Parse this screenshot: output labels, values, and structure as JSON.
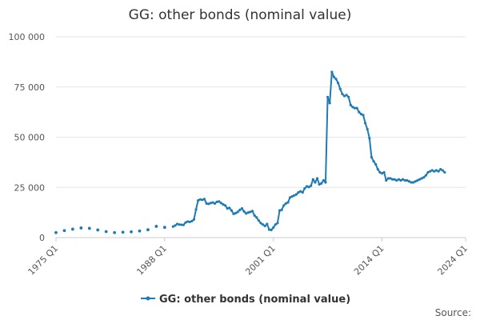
{
  "chart_data": {
    "type": "line",
    "title": "GG: other bonds (nominal value)",
    "xlabel": "",
    "ylabel": "",
    "x_tick_labels": [
      "1975 Q1",
      "1988 Q1",
      "2001 Q1",
      "2014 Q1",
      "2024 Q1"
    ],
    "x_tick_years": [
      1975.0,
      1988.0,
      2001.0,
      2014.0,
      2024.0
    ],
    "x_range": [
      1975.0,
      2024.0
    ],
    "ylim": [
      0,
      100000
    ],
    "y_ticks": [
      0,
      25000,
      50000,
      75000,
      100000
    ],
    "y_tick_labels": [
      "0",
      "25 000",
      "50 000",
      "75 000",
      "100 000"
    ],
    "grid": "horizontal",
    "legend_position": "bottom",
    "colors": {
      "series": "#1f7bb6",
      "grid": "#e6e6e6",
      "axis": "#cccccc"
    },
    "series": [
      {
        "name": "GG: other bonds (nominal value)",
        "annual_points": [
          [
            1975.0,
            2500
          ],
          [
            1976.0,
            3500
          ],
          [
            1977.0,
            4200
          ],
          [
            1978.0,
            4800
          ],
          [
            1979.0,
            4600
          ],
          [
            1980.0,
            3800
          ],
          [
            1981.0,
            3000
          ],
          [
            1982.0,
            2500
          ],
          [
            1983.0,
            2700
          ],
          [
            1984.0,
            2900
          ],
          [
            1985.0,
            3300
          ],
          [
            1986.0,
            3900
          ],
          [
            1987.0,
            5600
          ],
          [
            1988.0,
            5100
          ]
        ],
        "quarterly_points": [
          [
            1989.0,
            5500
          ],
          [
            1989.25,
            6000
          ],
          [
            1989.5,
            6800
          ],
          [
            1989.75,
            6500
          ],
          [
            1990.0,
            6400
          ],
          [
            1990.25,
            6300
          ],
          [
            1990.5,
            7500
          ],
          [
            1990.75,
            8000
          ],
          [
            1991.0,
            7800
          ],
          [
            1991.25,
            8200
          ],
          [
            1991.5,
            9000
          ],
          [
            1991.75,
            14000
          ],
          [
            1992.0,
            18500
          ],
          [
            1992.25,
            19000
          ],
          [
            1992.5,
            18800
          ],
          [
            1992.75,
            19200
          ],
          [
            1993.0,
            17000
          ],
          [
            1993.25,
            16800
          ],
          [
            1993.5,
            17200
          ],
          [
            1993.75,
            17500
          ],
          [
            1994.0,
            17000
          ],
          [
            1994.25,
            17800
          ],
          [
            1994.5,
            18000
          ],
          [
            1994.75,
            17200
          ],
          [
            1995.0,
            16500
          ],
          [
            1995.25,
            16000
          ],
          [
            1995.5,
            14500
          ],
          [
            1995.75,
            14800
          ],
          [
            1996.0,
            13500
          ],
          [
            1996.25,
            11800
          ],
          [
            1996.5,
            12200
          ],
          [
            1996.75,
            12800
          ],
          [
            1997.0,
            13800
          ],
          [
            1997.25,
            14500
          ],
          [
            1997.5,
            13000
          ],
          [
            1997.75,
            12000
          ],
          [
            1998.0,
            12500
          ],
          [
            1998.25,
            12800
          ],
          [
            1998.5,
            13200
          ],
          [
            1998.75,
            11000
          ],
          [
            1999.0,
            10000
          ],
          [
            1999.25,
            8500
          ],
          [
            1999.5,
            7200
          ],
          [
            1999.75,
            6500
          ],
          [
            2000.0,
            5800
          ],
          [
            2000.25,
            6800
          ],
          [
            2000.5,
            4000
          ],
          [
            2000.75,
            3800
          ],
          [
            2001.0,
            5000
          ],
          [
            2001.25,
            6500
          ],
          [
            2001.5,
            7200
          ],
          [
            2001.75,
            13500
          ],
          [
            2002.0,
            13800
          ],
          [
            2002.25,
            16000
          ],
          [
            2002.5,
            17000
          ],
          [
            2002.75,
            17500
          ],
          [
            2003.0,
            20000
          ],
          [
            2003.25,
            20500
          ],
          [
            2003.5,
            21000
          ],
          [
            2003.75,
            21500
          ],
          [
            2004.0,
            22500
          ],
          [
            2004.25,
            23000
          ],
          [
            2004.5,
            22500
          ],
          [
            2004.75,
            24500
          ],
          [
            2005.0,
            25500
          ],
          [
            2005.25,
            25200
          ],
          [
            2005.5,
            25800
          ],
          [
            2005.75,
            29000
          ],
          [
            2006.0,
            27500
          ],
          [
            2006.25,
            29500
          ],
          [
            2006.5,
            26500
          ],
          [
            2006.75,
            27000
          ],
          [
            2007.0,
            28500
          ],
          [
            2007.25,
            27500
          ],
          [
            2007.5,
            70000
          ],
          [
            2007.75,
            67000
          ],
          [
            2008.0,
            82500
          ],
          [
            2008.25,
            80000
          ],
          [
            2008.5,
            79000
          ],
          [
            2008.75,
            77000
          ],
          [
            2009.0,
            74000
          ],
          [
            2009.25,
            71500
          ],
          [
            2009.5,
            70500
          ],
          [
            2009.75,
            71000
          ],
          [
            2010.0,
            70000
          ],
          [
            2010.25,
            66000
          ],
          [
            2010.5,
            65000
          ],
          [
            2010.75,
            64500
          ],
          [
            2011.0,
            64500
          ],
          [
            2011.25,
            62500
          ],
          [
            2011.5,
            61500
          ],
          [
            2011.75,
            61000
          ],
          [
            2012.0,
            57000
          ],
          [
            2012.25,
            54000
          ],
          [
            2012.5,
            49500
          ],
          [
            2012.75,
            40000
          ],
          [
            2013.0,
            38000
          ],
          [
            2013.25,
            36500
          ],
          [
            2013.5,
            34000
          ],
          [
            2013.75,
            32500
          ],
          [
            2014.0,
            32000
          ],
          [
            2014.25,
            32500
          ],
          [
            2014.5,
            28500
          ],
          [
            2014.75,
            29500
          ],
          [
            2015.0,
            29500
          ],
          [
            2015.25,
            29000
          ],
          [
            2015.5,
            29000
          ],
          [
            2015.75,
            28500
          ],
          [
            2016.0,
            29000
          ],
          [
            2016.25,
            28500
          ],
          [
            2016.5,
            29000
          ],
          [
            2016.75,
            28500
          ],
          [
            2017.0,
            28500
          ],
          [
            2017.25,
            28000
          ],
          [
            2017.5,
            27500
          ],
          [
            2017.75,
            27500
          ],
          [
            2018.0,
            28000
          ],
          [
            2018.25,
            28500
          ],
          [
            2018.5,
            29000
          ],
          [
            2018.75,
            29500
          ],
          [
            2019.0,
            30000
          ],
          [
            2019.25,
            31000
          ],
          [
            2019.5,
            32500
          ],
          [
            2019.75,
            33000
          ],
          [
            2020.0,
            33500
          ],
          [
            2020.25,
            33000
          ],
          [
            2020.5,
            33500
          ],
          [
            2020.75,
            33000
          ],
          [
            2021.0,
            34000
          ],
          [
            2021.25,
            33500
          ],
          [
            2021.5,
            32500
          ]
        ]
      }
    ],
    "source_text": "Source:"
  }
}
